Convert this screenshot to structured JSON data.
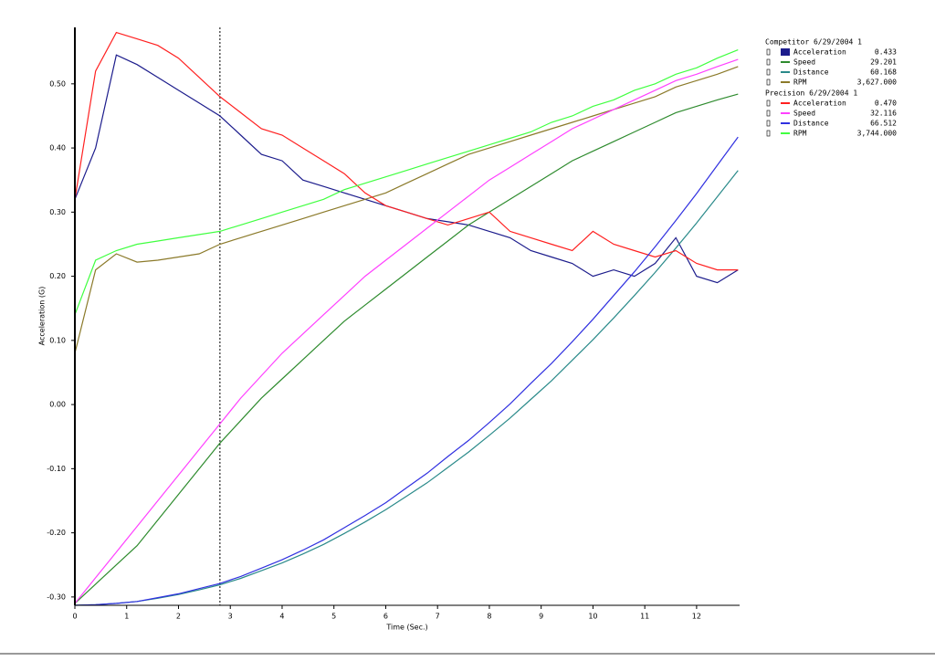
{
  "chart_data": {
    "type": "line",
    "y_label": "Acceleration (G)",
    "x_label": "Time (Sec.)",
    "xlim": [
      0,
      12.83
    ],
    "ylim": [
      -0.313,
      0.588
    ],
    "xticks": [
      0,
      1,
      2,
      3,
      4,
      5,
      6,
      7,
      8,
      9,
      10,
      11,
      12
    ],
    "yticks": [
      {
        "value": -0.3,
        "label": "-0.30"
      },
      {
        "value": -0.2,
        "label": "-0.20"
      },
      {
        "value": -0.1,
        "label": "-0.10"
      },
      {
        "value": 0,
        "label": "0.00"
      },
      {
        "value": 0.1,
        "label": "0.10"
      },
      {
        "value": 0.2,
        "label": "0.20"
      },
      {
        "value": 0.3,
        "label": "0.30"
      },
      {
        "value": 0.4,
        "label": "0.40"
      },
      {
        "value": 0.5,
        "label": "0.50"
      }
    ],
    "cursor_x": 2.8,
    "x": [
      0,
      0.4,
      0.8,
      1.2,
      1.6,
      2.0,
      2.4,
      2.8,
      3.2,
      3.6,
      4.0,
      4.4,
      4.8,
      5.2,
      5.6,
      6.0,
      6.4,
      6.8,
      7.2,
      7.6,
      8.0,
      8.4,
      8.8,
      9.2,
      9.6,
      10.0,
      10.4,
      10.8,
      11.2,
      11.6,
      12.0,
      12.4,
      12.8
    ],
    "groups": [
      {
        "title": "Competitor 6/29/2004 1",
        "series": [
          {
            "name": "Acceleration",
            "reading": "0.433",
            "color": "#1c1c8c",
            "values": [
              0.32,
              0.4,
              0.545,
              0.53,
              0.51,
              0.49,
              0.47,
              0.45,
              0.42,
              0.39,
              0.38,
              0.35,
              0.34,
              0.33,
              0.32,
              0.31,
              0.3,
              0.29,
              0.285,
              0.28,
              0.27,
              0.26,
              0.24,
              0.23,
              0.22,
              0.2,
              0.21,
              0.2,
              0.22,
              0.26,
              0.2,
              0.19,
              0.21
            ]
          },
          {
            "name": "Speed",
            "reading": "29.201",
            "color": "#2e8b2e",
            "values": [
              -0.31,
              -0.28,
              -0.25,
              -0.22,
              -0.18,
              -0.14,
              -0.1,
              -0.06,
              -0.025,
              0.01,
              0.04,
              0.07,
              0.1,
              0.13,
              0.155,
              0.18,
              0.205,
              0.23,
              0.255,
              0.28,
              0.3,
              0.32,
              0.34,
              0.36,
              0.38,
              0.395,
              0.41,
              0.425,
              0.44,
              0.455,
              0.465,
              0.475,
              0.484
            ]
          },
          {
            "name": "Distance",
            "reading": "60.168",
            "color": "#2a8a8a",
            "values": [
              -0.313,
              -0.312,
              -0.31,
              -0.307,
              -0.302,
              -0.296,
              -0.289,
              -0.281,
              -0.271,
              -0.259,
              -0.247,
              -0.233,
              -0.218,
              -0.201,
              -0.183,
              -0.164,
              -0.143,
              -0.122,
              -0.098,
              -0.074,
              -0.048,
              -0.021,
              0.008,
              0.037,
              0.069,
              0.101,
              0.135,
              0.17,
              0.206,
              0.244,
              0.283,
              0.324,
              0.365
            ]
          },
          {
            "name": "RPM",
            "reading": "3,627.000",
            "color": "#8b7a2a",
            "values": [
              0.08,
              0.21,
              0.235,
              0.222,
              0.225,
              0.23,
              0.235,
              0.25,
              0.26,
              0.27,
              0.28,
              0.29,
              0.3,
              0.31,
              0.32,
              0.33,
              0.345,
              0.36,
              0.375,
              0.39,
              0.4,
              0.41,
              0.42,
              0.43,
              0.44,
              0.45,
              0.46,
              0.47,
              0.48,
              0.495,
              0.505,
              0.515,
              0.527
            ]
          }
        ]
      },
      {
        "title": "Precision 6/29/2004 1",
        "series": [
          {
            "name": "Acceleration",
            "reading": "0.470",
            "color": "#ff2020",
            "values": [
              0.32,
              0.52,
              0.58,
              0.57,
              0.56,
              0.54,
              0.51,
              0.48,
              0.455,
              0.43,
              0.42,
              0.4,
              0.38,
              0.36,
              0.33,
              0.31,
              0.3,
              0.29,
              0.28,
              0.29,
              0.3,
              0.27,
              0.26,
              0.25,
              0.24,
              0.27,
              0.25,
              0.24,
              0.23,
              0.24,
              0.22,
              0.21,
              0.21
            ]
          },
          {
            "name": "Speed",
            "reading": "32.116",
            "color": "#ff40ff",
            "values": [
              -0.31,
              -0.27,
              -0.23,
              -0.19,
              -0.15,
              -0.11,
              -0.07,
              -0.03,
              0.01,
              0.045,
              0.08,
              0.11,
              0.14,
              0.17,
              0.2,
              0.225,
              0.25,
              0.275,
              0.3,
              0.325,
              0.35,
              0.37,
              0.39,
              0.41,
              0.43,
              0.445,
              0.46,
              0.475,
              0.49,
              0.505,
              0.515,
              0.527,
              0.538
            ]
          },
          {
            "name": "Distance",
            "reading": "66.512",
            "color": "#3030e0",
            "values": [
              -0.313,
              -0.312,
              -0.31,
              -0.307,
              -0.301,
              -0.295,
              -0.287,
              -0.279,
              -0.268,
              -0.255,
              -0.242,
              -0.227,
              -0.211,
              -0.192,
              -0.173,
              -0.153,
              -0.13,
              -0.107,
              -0.081,
              -0.056,
              -0.028,
              0.001,
              0.033,
              0.064,
              0.098,
              0.133,
              0.17,
              0.207,
              0.246,
              0.287,
              0.329,
              0.373,
              0.417
            ]
          },
          {
            "name": "RPM",
            "reading": "3,744.000",
            "color": "#40ff40",
            "values": [
              0.14,
              0.225,
              0.24,
              0.25,
              0.255,
              0.26,
              0.265,
              0.27,
              0.28,
              0.29,
              0.3,
              0.31,
              0.32,
              0.335,
              0.345,
              0.355,
              0.365,
              0.375,
              0.385,
              0.395,
              0.405,
              0.415,
              0.425,
              0.44,
              0.45,
              0.465,
              0.475,
              0.49,
              0.5,
              0.515,
              0.525,
              0.54,
              0.553
            ]
          }
        ]
      }
    ]
  }
}
